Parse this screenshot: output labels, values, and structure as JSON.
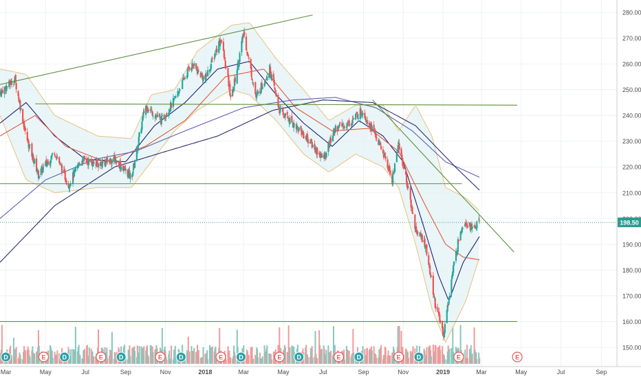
{
  "chart_data": {
    "type": "candlestick",
    "y_axis": {
      "ticks": [
        "280.00",
        "270.00",
        "260.00",
        "250.00",
        "240.00",
        "230.00",
        "220.00",
        "210.00",
        "200.00",
        "190.00",
        "180.00",
        "170.00",
        "160.00",
        "150.00"
      ],
      "range": [
        146,
        283
      ]
    },
    "x_axis": {
      "range": [
        "2017-02-20",
        "2019-09-25"
      ],
      "ticks": [
        {
          "label": "Mar",
          "date": "2017-03-01",
          "bold": false
        },
        {
          "label": "May",
          "date": "2017-05-01",
          "bold": false
        },
        {
          "label": "Jul",
          "date": "2017-07-01",
          "bold": false
        },
        {
          "label": "Sep",
          "date": "2017-09-01",
          "bold": false
        },
        {
          "label": "Nov",
          "date": "2017-11-01",
          "bold": false
        },
        {
          "label": "2018",
          "date": "2018-01-01",
          "bold": true
        },
        {
          "label": "Mar",
          "date": "2018-03-01",
          "bold": false
        },
        {
          "label": "May",
          "date": "2018-05-01",
          "bold": false
        },
        {
          "label": "Jul",
          "date": "2018-07-01",
          "bold": false
        },
        {
          "label": "Sep",
          "date": "2018-09-01",
          "bold": false
        },
        {
          "label": "Nov",
          "date": "2018-11-01",
          "bold": false
        },
        {
          "label": "2019",
          "date": "2019-01-01",
          "bold": true
        },
        {
          "label": "Mar",
          "date": "2019-03-01",
          "bold": false
        },
        {
          "label": "May",
          "date": "2019-05-01",
          "bold": false
        },
        {
          "label": "Jul",
          "date": "2019-07-01",
          "bold": false
        },
        {
          "label": "Sep",
          "date": "2019-09-01",
          "bold": false
        }
      ]
    },
    "price_path": [
      [
        "2017-02-20",
        249
      ],
      [
        "2017-03-15",
        254
      ],
      [
        "2017-04-01",
        232
      ],
      [
        "2017-04-20",
        217
      ],
      [
        "2017-05-15",
        226
      ],
      [
        "2017-06-05",
        213
      ],
      [
        "2017-06-25",
        223
      ],
      [
        "2017-07-20",
        221
      ],
      [
        "2017-08-15",
        223
      ],
      [
        "2017-09-10",
        216
      ],
      [
        "2017-10-01",
        244
      ],
      [
        "2017-10-25",
        238
      ],
      [
        "2017-11-15",
        246
      ],
      [
        "2017-12-10",
        260
      ],
      [
        "2018-01-01",
        254
      ],
      [
        "2018-01-25",
        270
      ],
      [
        "2018-02-10",
        246
      ],
      [
        "2018-03-01",
        272
      ],
      [
        "2018-03-20",
        247
      ],
      [
        "2018-04-10",
        258
      ],
      [
        "2018-04-25",
        242
      ],
      [
        "2018-05-20",
        236
      ],
      [
        "2018-06-10",
        230
      ],
      [
        "2018-07-01",
        223
      ],
      [
        "2018-07-20",
        235
      ],
      [
        "2018-08-10",
        237
      ],
      [
        "2018-08-30",
        242
      ],
      [
        "2018-09-20",
        232
      ],
      [
        "2018-10-05",
        223
      ],
      [
        "2018-10-15",
        215
      ],
      [
        "2018-10-25",
        229
      ],
      [
        "2018-11-05",
        216
      ],
      [
        "2018-11-20",
        196
      ],
      [
        "2018-12-05",
        190
      ],
      [
        "2018-12-20",
        167
      ],
      [
        "2019-01-02",
        155
      ],
      [
        "2019-01-15",
        178
      ],
      [
        "2019-01-28",
        196
      ],
      [
        "2019-02-05",
        199
      ],
      [
        "2019-02-15",
        196
      ],
      [
        "2019-02-26",
        198.5
      ]
    ],
    "indicators": [
      {
        "type": "bollinger",
        "color": "#e8c27a",
        "path": [
          [
            "2017-02-20",
            258,
            240
          ],
          [
            "2017-04-01",
            256,
            215
          ],
          [
            "2017-05-15",
            240,
            210
          ],
          [
            "2017-07-20",
            232,
            212
          ],
          [
            "2017-09-10",
            231,
            212
          ],
          [
            "2017-10-10",
            248,
            222
          ],
          [
            "2017-11-15",
            250,
            234
          ],
          [
            "2017-12-20",
            265,
            242
          ],
          [
            "2018-02-10",
            275,
            250
          ],
          [
            "2018-03-10",
            276,
            248
          ],
          [
            "2018-04-20",
            262,
            238
          ],
          [
            "2018-06-01",
            250,
            225
          ],
          [
            "2018-07-10",
            238,
            218
          ],
          [
            "2018-08-20",
            244,
            225
          ],
          [
            "2018-10-01",
            244,
            220
          ],
          [
            "2018-10-25",
            234,
            212
          ],
          [
            "2018-11-20",
            244,
            190
          ],
          [
            "2018-12-15",
            232,
            165
          ],
          [
            "2019-01-05",
            212,
            152
          ],
          [
            "2019-02-05",
            208,
            168
          ],
          [
            "2019-02-26",
            203,
            185
          ]
        ]
      },
      {
        "type": "ma",
        "color": "#1f1f78",
        "path": [
          [
            "2017-02-20",
            237
          ],
          [
            "2017-04-01",
            245
          ],
          [
            "2017-05-15",
            232
          ],
          [
            "2017-07-01",
            223
          ],
          [
            "2017-09-01",
            222
          ],
          [
            "2017-10-15",
            236
          ],
          [
            "2017-12-01",
            245
          ],
          [
            "2018-01-20",
            258
          ],
          [
            "2018-03-10",
            261
          ],
          [
            "2018-04-20",
            248
          ],
          [
            "2018-06-01",
            237
          ],
          [
            "2018-07-15",
            228
          ],
          [
            "2018-08-25",
            238
          ],
          [
            "2018-10-01",
            232
          ],
          [
            "2018-11-01",
            222
          ],
          [
            "2018-12-01",
            198
          ],
          [
            "2018-12-25",
            178
          ],
          [
            "2019-01-10",
            168
          ],
          [
            "2019-02-01",
            183
          ],
          [
            "2019-02-26",
            193
          ]
        ]
      },
      {
        "type": "ma",
        "color": "#e05a3a",
        "path": [
          [
            "2017-02-20",
            232
          ],
          [
            "2017-04-15",
            240
          ],
          [
            "2017-06-01",
            228
          ],
          [
            "2017-08-01",
            222
          ],
          [
            "2017-10-01",
            228
          ],
          [
            "2017-12-01",
            238
          ],
          [
            "2018-02-01",
            255
          ],
          [
            "2018-04-01",
            258
          ],
          [
            "2018-05-20",
            243
          ],
          [
            "2018-07-15",
            234
          ],
          [
            "2018-09-10",
            235
          ],
          [
            "2018-10-25",
            226
          ],
          [
            "2018-12-05",
            205
          ],
          [
            "2019-01-05",
            190
          ],
          [
            "2019-02-01",
            185
          ],
          [
            "2019-02-26",
            184
          ]
        ]
      },
      {
        "type": "ma",
        "color": "#5b5fb0",
        "path": [
          [
            "2017-02-20",
            200
          ],
          [
            "2017-05-01",
            215
          ],
          [
            "2017-07-15",
            223
          ],
          [
            "2017-09-15",
            226
          ],
          [
            "2017-12-01",
            234
          ],
          [
            "2018-03-01",
            243
          ],
          [
            "2018-05-15",
            246
          ],
          [
            "2018-07-20",
            247
          ],
          [
            "2018-09-20",
            243
          ],
          [
            "2018-11-15",
            234
          ],
          [
            "2019-01-05",
            222
          ],
          [
            "2019-02-26",
            216
          ]
        ]
      },
      {
        "type": "ma",
        "color": "#2a2a6e",
        "path": [
          [
            "2017-02-20",
            183
          ],
          [
            "2017-05-15",
            205
          ],
          [
            "2017-08-15",
            220
          ],
          [
            "2017-11-01",
            226
          ],
          [
            "2018-01-20",
            232
          ],
          [
            "2018-04-15",
            242
          ],
          [
            "2018-07-01",
            246
          ],
          [
            "2018-09-15",
            245
          ],
          [
            "2018-11-20",
            236
          ],
          [
            "2019-01-20",
            220
          ],
          [
            "2019-02-26",
            211
          ]
        ]
      }
    ],
    "trendlines": [
      {
        "from": [
          "2017-02-20",
          252
        ],
        "to": [
          "2018-06-15",
          279
        ]
      },
      {
        "from": [
          "2017-04-15",
          244.5
        ],
        "to": [
          "2019-04-25",
          244
        ]
      },
      {
        "from": [
          "2017-02-20",
          213.5
        ],
        "to": [
          "2019-01-30",
          213.5
        ]
      },
      {
        "from": [
          "2017-02-20",
          160
        ],
        "to": [
          "2019-04-25",
          160
        ]
      },
      {
        "from": [
          "2018-09-15",
          246
        ],
        "to": [
          "2019-04-20",
          187
        ]
      }
    ],
    "current_price": {
      "value": "198.50",
      "line_value": 198.5
    },
    "volume": {
      "up_color": "#85c7bd",
      "down_color": "#ef9a9a"
    },
    "event_markers": [
      {
        "label": "D",
        "date": "2017-03-01",
        "type": "dividend"
      },
      {
        "label": "E",
        "date": "2017-04-28",
        "type": "earnings"
      },
      {
        "label": "D",
        "date": "2017-05-30",
        "type": "dividend"
      },
      {
        "label": "E",
        "date": "2017-07-25",
        "type": "earnings"
      },
      {
        "label": "D",
        "date": "2017-08-25",
        "type": "dividend"
      },
      {
        "label": "E",
        "date": "2017-10-24",
        "type": "earnings"
      },
      {
        "label": "D",
        "date": "2017-11-25",
        "type": "dividend"
      },
      {
        "label": "E",
        "date": "2018-01-25",
        "type": "earnings"
      },
      {
        "label": "D",
        "date": "2018-02-25",
        "type": "dividend"
      },
      {
        "label": "E",
        "date": "2018-04-25",
        "type": "earnings"
      },
      {
        "label": "D",
        "date": "2018-05-25",
        "type": "dividend"
      },
      {
        "label": "E",
        "date": "2018-07-25",
        "type": "earnings"
      },
      {
        "label": "D",
        "date": "2018-08-25",
        "type": "dividend"
      },
      {
        "label": "E",
        "date": "2018-10-25",
        "type": "earnings"
      },
      {
        "label": "D",
        "date": "2018-11-25",
        "type": "dividend"
      },
      {
        "label": "E",
        "date": "2019-01-25",
        "type": "earnings"
      },
      {
        "label": "E",
        "date": "2019-04-25",
        "type": "earnings",
        "future": true
      }
    ],
    "colors": {
      "up": "#26a69a",
      "down": "#ef5350",
      "trendline": "#5b8f3a",
      "price_tag": "#2a9d8f",
      "grid": "#eef1f4",
      "axis_text": "#4a4a4a"
    }
  }
}
